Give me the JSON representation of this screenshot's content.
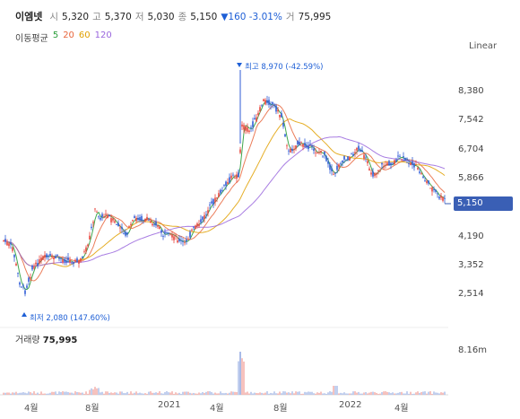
{
  "header": {
    "stock_name": "이엠넷",
    "open_label": "시",
    "open_value": "5,320",
    "high_label": "고",
    "high_value": "5,370",
    "low_label": "저",
    "low_value": "5,030",
    "close_label": "종",
    "close_value": "5,150",
    "change": "▼160 -3.01%",
    "volume_label": "거",
    "volume_value": "75,995"
  },
  "moving_average": {
    "label": "이동평균",
    "periods": [
      "5",
      "20",
      "60",
      "120"
    ],
    "colors": [
      "#2a9d3a",
      "#e8663d",
      "#e0a000",
      "#9966dd"
    ]
  },
  "scale_button": "Linear",
  "y_axis_labels": [
    "8,380",
    "7,542",
    "6,704",
    "5,866",
    "4,190",
    "3,352",
    "2,514"
  ],
  "current_price": "5,150",
  "max_note": "최고 8,970 (-42.59%)",
  "min_note": "최저 2,080 (147.60%)",
  "volume": {
    "title": "거래량",
    "value": "75,995",
    "axis_label": "8.16m"
  },
  "x_axis_labels": [
    "4월",
    "8월",
    "2021",
    "4월",
    "8월",
    "2022",
    "4월"
  ],
  "colors": {
    "up": "#e8453c",
    "down": "#2f5bd6",
    "accent": "#3a5fb5"
  }
}
